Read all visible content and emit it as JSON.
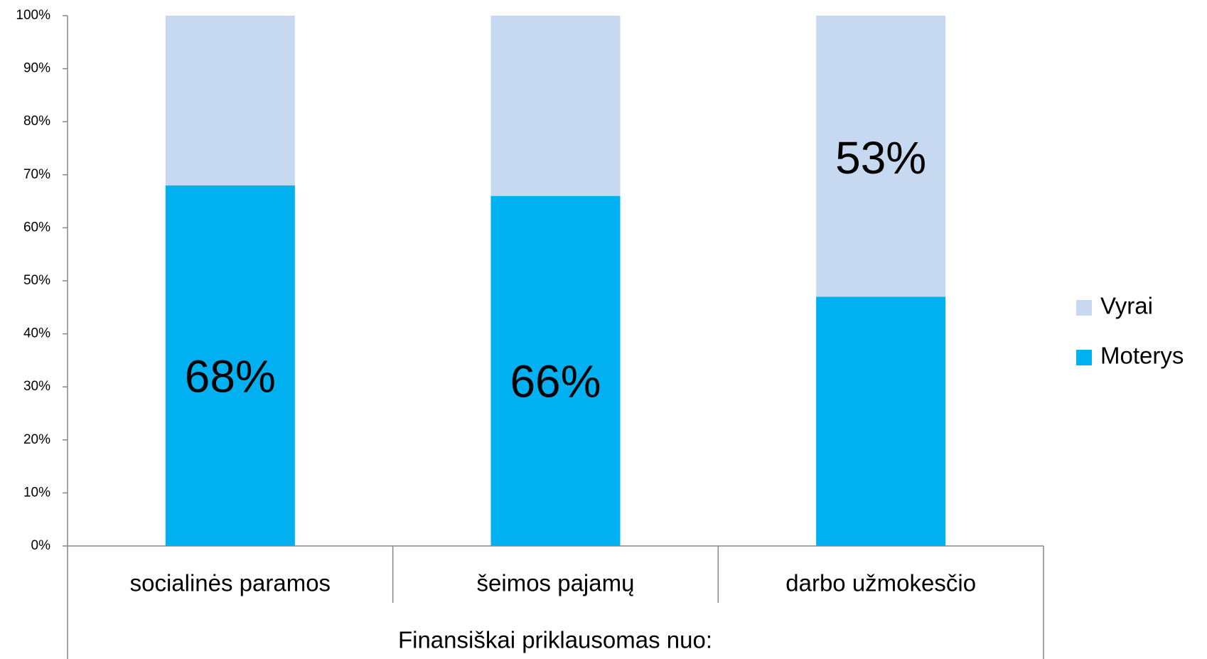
{
  "chart_data": {
    "type": "stacked_bar",
    "categories": [
      "socialinės paramos",
      "šeimos pajamų",
      "darbo užmokesčio"
    ],
    "x_label": "Finansiškai priklausomas nuo:",
    "series": [
      {
        "name": "Moterys",
        "color": "#00b0f0",
        "values": [
          68,
          66,
          47
        ],
        "value_labels": [
          "68%",
          "66%",
          null
        ]
      },
      {
        "name": "Vyrai",
        "color": "#c6d9f1",
        "values": [
          32,
          34,
          53
        ],
        "value_labels": [
          null,
          null,
          "53%"
        ]
      }
    ],
    "ylim": [
      0,
      100
    ],
    "yticks": [
      {
        "value": 0,
        "label": "0%"
      },
      {
        "value": 10,
        "label": "10%"
      },
      {
        "value": 20,
        "label": "20%"
      },
      {
        "value": 30,
        "label": "30%"
      },
      {
        "value": 40,
        "label": "40%"
      },
      {
        "value": 50,
        "label": "50%"
      },
      {
        "value": 60,
        "label": "60%"
      },
      {
        "value": 70,
        "label": "70%"
      },
      {
        "value": 80,
        "label": "80%"
      },
      {
        "value": 90,
        "label": "90%"
      },
      {
        "value": 100,
        "label": "100%"
      }
    ],
    "grid": false,
    "legend": "right"
  }
}
